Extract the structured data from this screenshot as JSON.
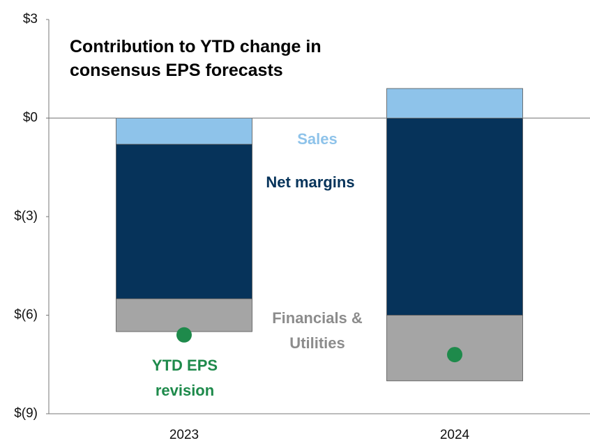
{
  "chart_data": {
    "type": "bar",
    "stacked": true,
    "title": "Contribution to YTD change in consensus EPS forecasts",
    "categories": [
      "2023",
      "2024"
    ],
    "series": [
      {
        "name": "Sales",
        "color": "#8ec3ea",
        "values": [
          -0.8,
          0.9
        ]
      },
      {
        "name": "Net margins",
        "color": "#06335a",
        "values": [
          -4.7,
          -6.0
        ]
      },
      {
        "name": "Financials & Utilities",
        "color": "#a5a5a5",
        "values": [
          -1.0,
          -2.0
        ]
      },
      {
        "name": "YTD EPS revision",
        "color": "#1e8a4b",
        "type": "scatter",
        "values": [
          -6.6,
          -7.2
        ]
      }
    ],
    "ylim": [
      -9,
      3
    ],
    "yticks": [
      {
        "value": 3,
        "label": "$3"
      },
      {
        "value": 0,
        "label": "$0"
      },
      {
        "value": -3,
        "label": "$(3)"
      },
      {
        "value": -6,
        "label": "$(6)"
      },
      {
        "value": -9,
        "label": "$(9)"
      }
    ]
  }
}
